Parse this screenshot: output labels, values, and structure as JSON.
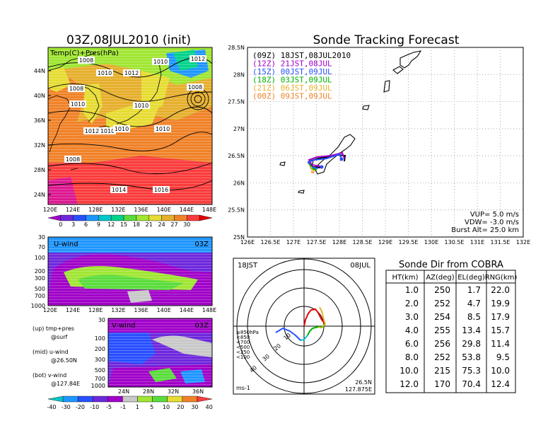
{
  "left_panel": {
    "title": "03Z,08JUL2010 (init)",
    "map_label": "Temp(C)+Pres(hPa)",
    "lat_labels": [
      "44N",
      "40N",
      "36N",
      "32N",
      "28N",
      "24N"
    ],
    "lon_labels": [
      "120E",
      "124E",
      "128E",
      "132E",
      "136E",
      "140E",
      "144E",
      "148E"
    ],
    "isobar_labels": [
      "1008",
      "1010",
      "1012",
      "1010",
      "1012",
      "1008",
      "1008",
      "1010",
      "1010",
      "1012",
      "1010",
      "1010",
      "1010",
      "1008",
      "1014",
      "1016"
    ],
    "colorbar_ticks": [
      "0",
      "3",
      "6",
      "9",
      "12",
      "15",
      "18",
      "21",
      "24",
      "27",
      "30"
    ],
    "colorbar_colors": [
      "#a000c8",
      "#6e28dc",
      "#2850ff",
      "#1e96ff",
      "#00c8c8",
      "#00d28c",
      "#5adc3c",
      "#a0e632",
      "#e6dc32",
      "#e6af2d",
      "#f08228",
      "#fa3c3c",
      "#e60000"
    ]
  },
  "uwind_panel": {
    "label": "U-wind",
    "time": "03Z",
    "y_ticks": [
      "30",
      "70",
      "100",
      "200",
      "300",
      "500",
      "700",
      "1000"
    ],
    "x_ticks": [
      "120E",
      "124E",
      "128E",
      "132E",
      "136E",
      "140E",
      "144E",
      "148E"
    ]
  },
  "vwind_panel": {
    "label": "V-wind",
    "time": "03Z",
    "y_ticks": [
      "30",
      "100",
      "200",
      "300",
      "500",
      "700",
      "1000"
    ],
    "x_ticks": [
      "24N",
      "28N",
      "32N",
      "36N"
    ]
  },
  "notes": {
    "l1a": "(up) tmp+pres",
    "l1b": "@surf",
    "l2a": "(mid) u-wind",
    "l2b": "@26.50N",
    "l3a": "(bot) v-wind",
    "l3b": "@127.84E"
  },
  "wind_colorbar": {
    "ticks": [
      "-40",
      "-30",
      "-20",
      "-10",
      "-5",
      "-1",
      "1",
      "5",
      "10",
      "20",
      "30",
      "40"
    ],
    "colors": [
      "#00c8c8",
      "#1e96ff",
      "#2850ff",
      "#6e28dc",
      "#a000c8",
      "#c8c8c8",
      "#a0e632",
      "#5adc3c",
      "#e6dc32",
      "#f08228",
      "#fa3c3c"
    ]
  },
  "tracking": {
    "title": "Sonde Tracking Forecast",
    "lat_labels": [
      "28.5N",
      "28N",
      "27.5N",
      "27N",
      "26.5N",
      "26N",
      "25.5N",
      "25N"
    ],
    "lon_labels": [
      "126E",
      "126.5E",
      "127E",
      "127.5E",
      "128E",
      "128.5E",
      "129E",
      "129.5E",
      "130E",
      "130.5E",
      "131E",
      "131.5E",
      "132E"
    ],
    "legend": [
      {
        "text": "(09Z)  18JST,08JUL2010",
        "color": "#000000"
      },
      {
        "text": "(12Z)  21JST,08JUL",
        "color": "#a000c8"
      },
      {
        "text": "(15Z)  00JST,09JUL",
        "color": "#2850ff"
      },
      {
        "text": "(18Z)  03JST,09JUL",
        "color": "#00b400"
      },
      {
        "text": "(21Z)  06JST,09JUL",
        "color": "#e6b432"
      },
      {
        "text": "(00Z)  09JST,09JUL",
        "color": "#f08228"
      }
    ],
    "params": [
      "VUP=  5.0  m/s",
      "VDW= -3.0  m/s",
      "Burst Alt=  25.0  km"
    ]
  },
  "polar": {
    "time": "18JST",
    "date": "08JUL",
    "unit": "ms-1",
    "lat": "26.5N",
    "lon": "127.875E",
    "ring_labels": [
      "10",
      "20",
      "30",
      "40"
    ],
    "legend": [
      {
        "text": "≥850hPa",
        "color": "#e60000"
      },
      {
        "text": "<850",
        "color": "#e6b432"
      },
      {
        "text": "<700",
        "color": "#a0c800"
      },
      {
        "text": "<500",
        "color": "#00b400"
      },
      {
        "text": "<250",
        "color": "#00c8c8"
      },
      {
        "text": "<100",
        "color": "#2850ff"
      }
    ]
  },
  "sonde_table": {
    "title": "Sonde Dir from COBRA",
    "headers": [
      "HT(km)",
      "AZ(deg)",
      "EL(deg)",
      "RNG(km)"
    ],
    "rows": [
      [
        "1.0",
        "250",
        "1.7",
        "22.0"
      ],
      [
        "2.0",
        "252",
        "4.7",
        "19.9"
      ],
      [
        "3.0",
        "254",
        "8.5",
        "17.9"
      ],
      [
        "4.0",
        "255",
        "13.4",
        "15.7"
      ],
      [
        "6.0",
        "256",
        "29.8",
        "11.4"
      ],
      [
        "8.0",
        "252",
        "53.8",
        "9.5"
      ],
      [
        "10.0",
        "215",
        "75.3",
        "10.0"
      ],
      [
        "12.0",
        "170",
        "70.4",
        "12.4"
      ]
    ]
  },
  "chart_data": {
    "type": "table",
    "title": "Sonde Dir from COBRA",
    "columns": [
      "HT(km)",
      "AZ(deg)",
      "EL(deg)",
      "RNG(km)"
    ],
    "rows": [
      [
        1.0,
        250,
        1.7,
        22.0
      ],
      [
        2.0,
        252,
        4.7,
        19.9
      ],
      [
        3.0,
        254,
        8.5,
        17.9
      ],
      [
        4.0,
        255,
        13.4,
        15.7
      ],
      [
        6.0,
        256,
        29.8,
        11.4
      ],
      [
        8.0,
        252,
        53.8,
        9.5
      ],
      [
        10.0,
        215,
        75.3,
        10.0
      ],
      [
        12.0,
        170,
        70.4,
        12.4
      ]
    ]
  }
}
